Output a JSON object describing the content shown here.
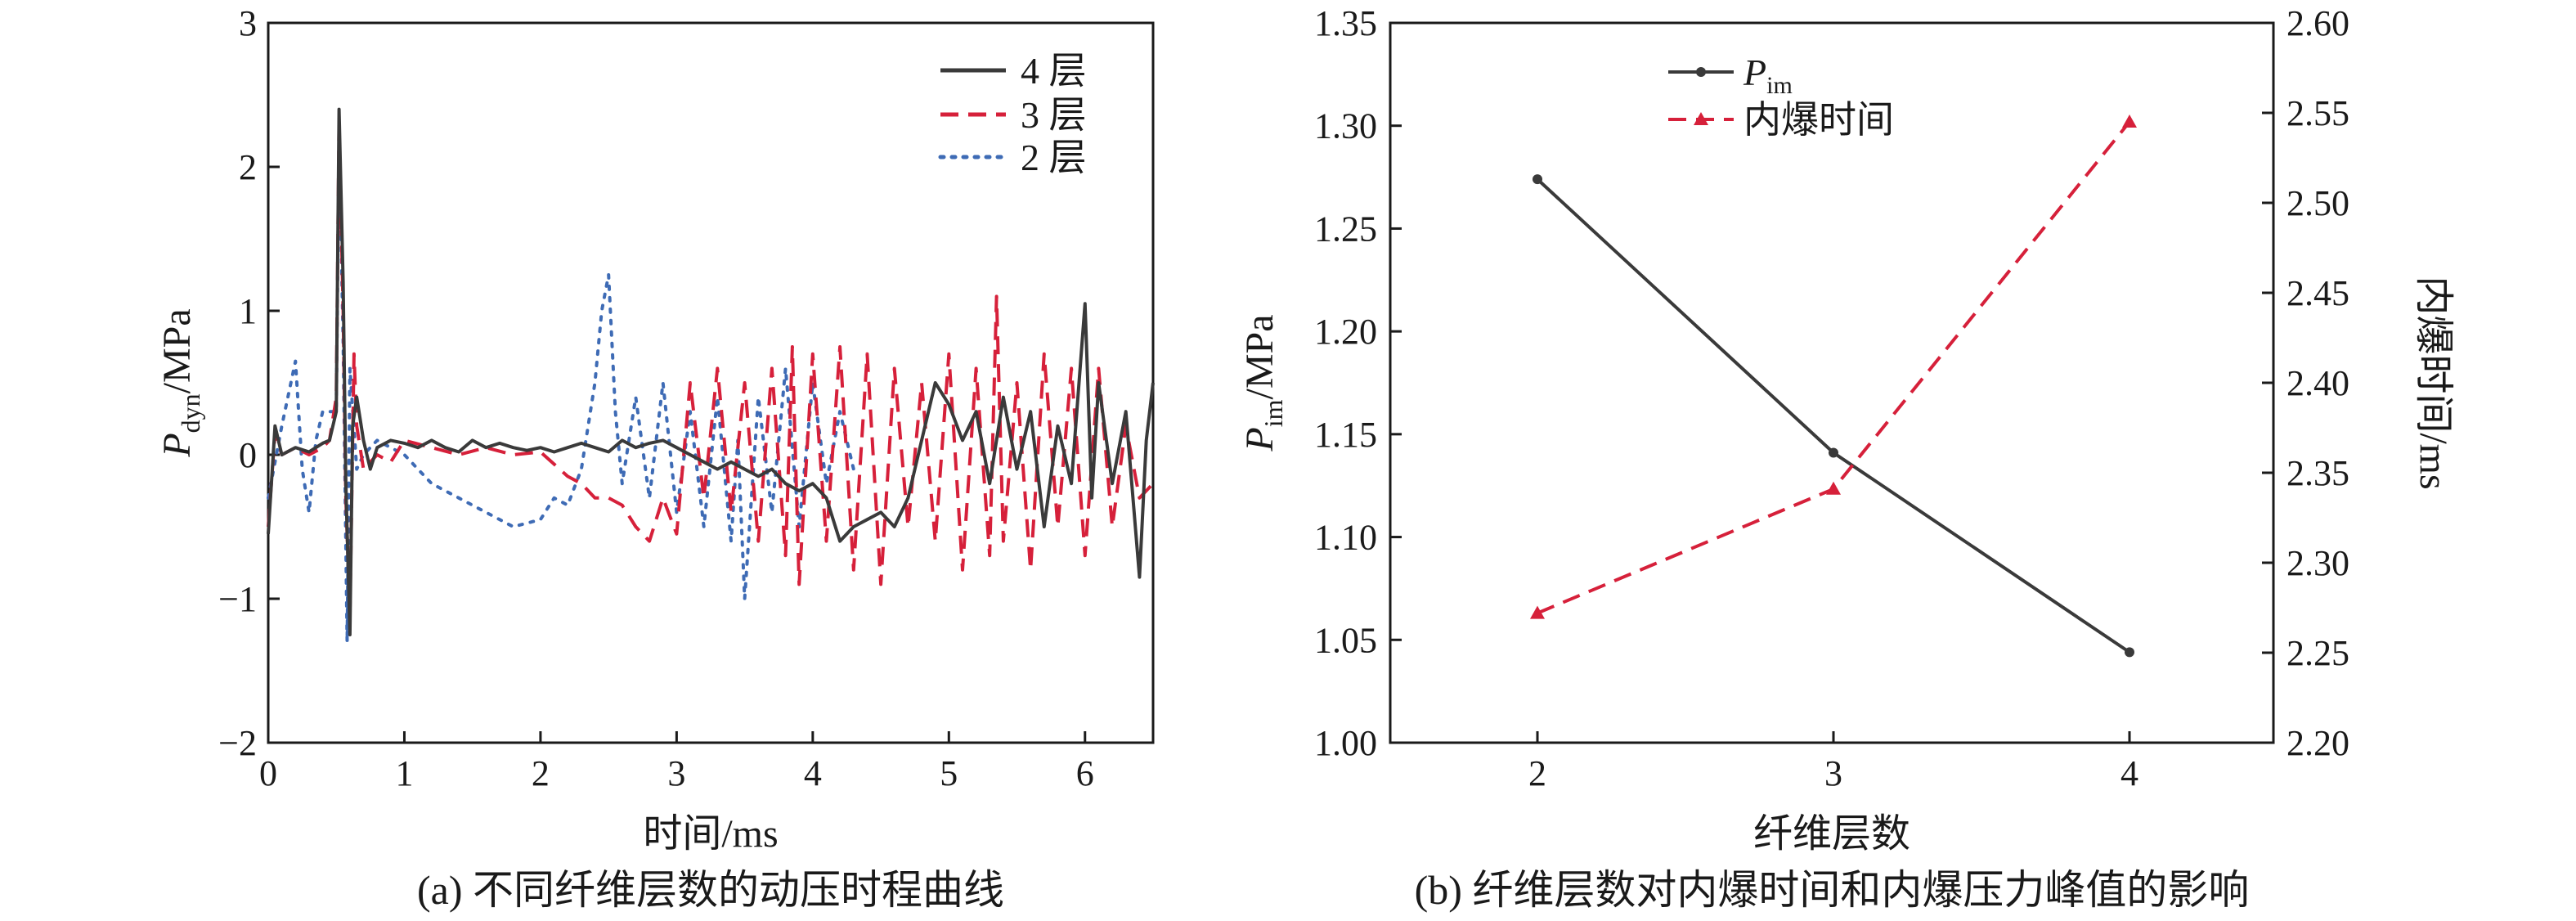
{
  "chart_data": [
    {
      "type": "line",
      "caption": "(a) 不同纤维层数的动压时程曲线",
      "xlabel": "时间/ms",
      "ylabel_main": "P",
      "ylabel_sub": "dyn",
      "ylabel_unit": "/MPa",
      "xlim": [
        0,
        6.5
      ],
      "ylim": [
        -2,
        3
      ],
      "x_ticks": [
        0,
        1,
        2,
        3,
        4,
        5,
        6
      ],
      "x_tick_labels": [
        "0",
        "1",
        "2",
        "3",
        "4",
        "5",
        "6"
      ],
      "y_ticks": [
        -2,
        -1,
        0,
        1,
        2,
        3
      ],
      "y_tick_labels": [
        "−2",
        "−1",
        "0",
        "1",
        "2",
        "3"
      ],
      "grid": false,
      "legend_position": "top-right",
      "series": [
        {
          "name": "4 层",
          "color": "#3a3a3a",
          "dash": "solid",
          "x": [
            0.0,
            0.05,
            0.1,
            0.2,
            0.3,
            0.4,
            0.45,
            0.5,
            0.52,
            0.55,
            0.57,
            0.6,
            0.62,
            0.65,
            0.7,
            0.75,
            0.8,
            0.9,
            1.0,
            1.1,
            1.2,
            1.3,
            1.4,
            1.5,
            1.6,
            1.7,
            1.8,
            1.9,
            2.0,
            2.1,
            2.2,
            2.3,
            2.4,
            2.5,
            2.6,
            2.7,
            2.8,
            2.9,
            3.0,
            3.1,
            3.2,
            3.3,
            3.4,
            3.5,
            3.6,
            3.7,
            3.8,
            3.9,
            4.0,
            4.1,
            4.2,
            4.3,
            4.4,
            4.5,
            4.6,
            4.7,
            4.8,
            4.9,
            5.0,
            5.1,
            5.2,
            5.3,
            5.4,
            5.5,
            5.6,
            5.7,
            5.8,
            5.9,
            6.0,
            6.05,
            6.1,
            6.2,
            6.3,
            6.4,
            6.45,
            6.5
          ],
          "y": [
            -0.55,
            0.2,
            0.0,
            0.05,
            0.02,
            0.08,
            0.1,
            0.3,
            2.4,
            1.2,
            -0.2,
            -1.25,
            0.2,
            0.4,
            0.1,
            -0.1,
            0.05,
            0.1,
            0.08,
            0.05,
            0.1,
            0.05,
            0.02,
            0.1,
            0.05,
            0.08,
            0.05,
            0.03,
            0.05,
            0.02,
            0.05,
            0.08,
            0.05,
            0.02,
            0.1,
            0.05,
            0.08,
            0.1,
            0.05,
            0.0,
            -0.05,
            -0.1,
            -0.05,
            -0.1,
            -0.15,
            -0.1,
            -0.2,
            -0.25,
            -0.2,
            -0.3,
            -0.6,
            -0.5,
            -0.45,
            -0.4,
            -0.5,
            -0.3,
            0.1,
            0.5,
            0.35,
            0.1,
            0.3,
            -0.2,
            0.4,
            -0.1,
            0.3,
            -0.5,
            0.2,
            -0.2,
            1.05,
            -0.3,
            0.5,
            -0.2,
            0.3,
            -0.85,
            0.1,
            0.5
          ]
        },
        {
          "name": "3 层",
          "color": "#d6203a",
          "dash": "22 12",
          "x": [
            0.0,
            0.05,
            0.1,
            0.2,
            0.3,
            0.4,
            0.45,
            0.5,
            0.52,
            0.55,
            0.57,
            0.6,
            0.63,
            0.65,
            0.7,
            0.8,
            0.9,
            1.0,
            1.2,
            1.4,
            1.6,
            1.8,
            2.0,
            2.2,
            2.3,
            2.4,
            2.5,
            2.6,
            2.7,
            2.8,
            2.9,
            3.0,
            3.1,
            3.2,
            3.3,
            3.4,
            3.5,
            3.6,
            3.7,
            3.8,
            3.85,
            3.9,
            4.0,
            4.1,
            4.2,
            4.3,
            4.4,
            4.5,
            4.6,
            4.7,
            4.8,
            4.9,
            5.0,
            5.1,
            5.2,
            5.3,
            5.35,
            5.4,
            5.5,
            5.6,
            5.7,
            5.8,
            5.9,
            6.0,
            6.1,
            6.2,
            6.3,
            6.4,
            6.5
          ],
          "y": [
            -0.5,
            0.15,
            0.0,
            0.05,
            0.0,
            0.05,
            0.1,
            0.4,
            2.3,
            1.0,
            -0.3,
            -1.1,
            0.7,
            0.2,
            -0.1,
            0.0,
            -0.05,
            0.1,
            0.05,
            0.0,
            0.05,
            0.0,
            0.02,
            -0.15,
            -0.2,
            -0.3,
            -0.3,
            -0.35,
            -0.5,
            -0.6,
            -0.3,
            -0.55,
            0.5,
            -0.3,
            0.6,
            -0.4,
            0.5,
            -0.6,
            0.6,
            -0.7,
            0.75,
            -0.9,
            0.7,
            -0.6,
            0.75,
            -0.8,
            0.7,
            -0.9,
            0.6,
            -0.5,
            0.5,
            -0.6,
            0.7,
            -0.8,
            0.6,
            -0.7,
            1.1,
            -0.6,
            0.5,
            -0.8,
            0.7,
            -0.5,
            0.6,
            -0.7,
            0.6,
            -0.5,
            0.2,
            -0.3,
            -0.2
          ]
        },
        {
          "name": "2 层",
          "color": "#3e6bb5",
          "dash": "4 10",
          "x": [
            0.0,
            0.1,
            0.2,
            0.25,
            0.3,
            0.35,
            0.4,
            0.5,
            0.52,
            0.55,
            0.58,
            0.6,
            0.65,
            0.7,
            0.8,
            0.9,
            1.0,
            1.2,
            1.4,
            1.6,
            1.8,
            2.0,
            2.1,
            2.2,
            2.3,
            2.4,
            2.45,
            2.5,
            2.55,
            2.6,
            2.7,
            2.8,
            2.9,
            3.0,
            3.1,
            3.2,
            3.3,
            3.4,
            3.45,
            3.5,
            3.55,
            3.6,
            3.7,
            3.8,
            3.9,
            4.0,
            4.1,
            4.2,
            4.3
          ],
          "y": [
            -0.3,
            0.2,
            0.65,
            -0.1,
            -0.4,
            0.1,
            0.3,
            0.3,
            2.2,
            0.8,
            -1.3,
            0.6,
            -0.1,
            0.0,
            0.1,
            0.05,
            0.0,
            -0.2,
            -0.3,
            -0.4,
            -0.5,
            -0.45,
            -0.3,
            -0.35,
            -0.1,
            0.5,
            1.0,
            1.25,
            0.3,
            -0.2,
            0.4,
            -0.3,
            0.5,
            -0.4,
            0.3,
            -0.5,
            0.4,
            -0.6,
            0.1,
            -1.0,
            -0.3,
            0.4,
            -0.4,
            0.6,
            -0.5,
            0.5,
            -0.2,
            0.3,
            -0.1
          ]
        }
      ]
    },
    {
      "type": "line",
      "caption": "(b) 纤维层数对内爆时间和内爆压力峰值的影响",
      "xlabel": "纤维层数",
      "ylabel_left_main": "P",
      "ylabel_left_sub": "im",
      "ylabel_left_unit": "/MPa",
      "ylabel_right": "内爆时间/ms",
      "categories": [
        "2",
        "3",
        "4"
      ],
      "ylim_left": [
        1.0,
        1.35
      ],
      "ylim_right": [
        2.2,
        2.6
      ],
      "y_left_ticks": [
        "1.00",
        "1.05",
        "1.10",
        "1.15",
        "1.20",
        "1.25",
        "1.30",
        "1.35"
      ],
      "y_right_ticks": [
        "2.20",
        "2.25",
        "2.30",
        "2.35",
        "2.40",
        "2.45",
        "2.50",
        "2.55",
        "2.60"
      ],
      "grid": false,
      "legend_position": "top-left",
      "series": [
        {
          "name_main": "P",
          "name_sub": "im",
          "axis": "left",
          "color": "#3a3a3a",
          "marker": "circle",
          "dash": "solid",
          "values": [
            1.274,
            1.141,
            1.044
          ]
        },
        {
          "name": "内爆时间",
          "axis": "right",
          "color": "#d6203a",
          "marker": "triangle",
          "dash": "22 12",
          "values": [
            2.272,
            2.341,
            2.545
          ]
        }
      ]
    }
  ]
}
